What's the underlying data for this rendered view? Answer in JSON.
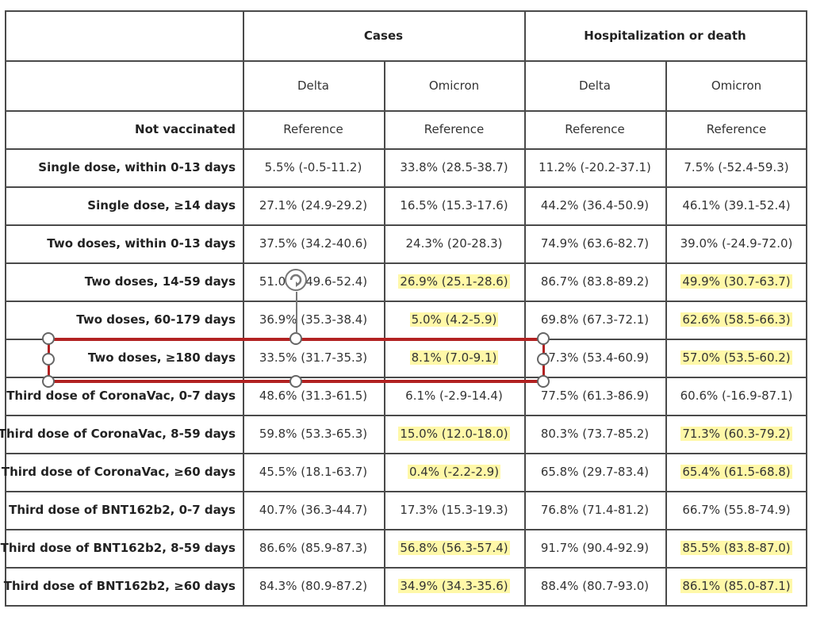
{
  "table": {
    "group_headers": [
      "Cases",
      "Hospitalization or death"
    ],
    "sub_headers": [
      "Delta",
      "Omicron",
      "Delta",
      "Omicron"
    ],
    "rows": [
      {
        "label": "Not vaccinated",
        "cells": [
          "Reference",
          "Reference",
          "Reference",
          "Reference"
        ],
        "hl": [
          false,
          false,
          false,
          false
        ]
      },
      {
        "label": "Single dose, within 0-13 days",
        "cells": [
          "5.5% (-0.5-11.2)",
          "33.8% (28.5-38.7)",
          "11.2% (-20.2-37.1)",
          "7.5% (-52.4-59.3)"
        ],
        "hl": [
          false,
          false,
          false,
          false
        ]
      },
      {
        "label": "Single dose, ≥14 days",
        "cells": [
          "27.1% (24.9-29.2)",
          "16.5% (15.3-17.6)",
          "44.2% (36.4-50.9)",
          "46.1% (39.1-52.4)"
        ],
        "hl": [
          false,
          false,
          false,
          false
        ]
      },
      {
        "label": "Two doses, within 0-13 days",
        "cells": [
          "37.5% (34.2-40.6)",
          "24.3% (20-28.3)",
          "74.9% (63.6-82.7)",
          "39.0% (-24.9-72.0)"
        ],
        "hl": [
          false,
          false,
          false,
          false
        ]
      },
      {
        "label": "Two doses, 14-59 days",
        "cells": [
          "51.0% (49.6-52.4)",
          "26.9% (25.1-28.6)",
          "86.7% (83.8-89.2)",
          "49.9% (30.7-63.7)"
        ],
        "hl": [
          false,
          true,
          false,
          true
        ]
      },
      {
        "label": "Two doses, 60-179 days",
        "cells": [
          "36.9% (35.3-38.4)",
          "5.0% (4.2-5.9)",
          "69.8% (67.3-72.1)",
          "62.6% (58.5-66.3)"
        ],
        "hl": [
          false,
          true,
          false,
          true
        ]
      },
      {
        "label": "Two doses, ≥180 days",
        "cells": [
          "33.5% (31.7-35.3)",
          "8.1% (7.0-9.1)",
          "57.3% (53.4-60.9)",
          "57.0% (53.5-60.2)"
        ],
        "hl": [
          false,
          true,
          false,
          true
        ]
      },
      {
        "label": "Third dose of CoronaVac, 0-7 days",
        "cells": [
          "48.6% (31.3-61.5)",
          "6.1% (-2.9-14.4)",
          "77.5% (61.3-86.9)",
          "60.6% (-16.9-87.1)"
        ],
        "hl": [
          false,
          false,
          false,
          false
        ]
      },
      {
        "label": "Third dose of CoronaVac, 8-59 days",
        "cells": [
          "59.8% (53.3-65.3)",
          "15.0% (12.0-18.0)",
          "80.3% (73.7-85.2)",
          "71.3% (60.3-79.2)"
        ],
        "hl": [
          false,
          true,
          false,
          true
        ]
      },
      {
        "label": "Third dose of CoronaVac, ≥60 days",
        "cells": [
          "45.5% (18.1-63.7)",
          "0.4% (-2.2-2.9)",
          "65.8% (29.7-83.4)",
          "65.4% (61.5-68.8)"
        ],
        "hl": [
          false,
          true,
          false,
          true
        ]
      },
      {
        "label": "Third dose of BNT162b2, 0-7 days",
        "cells": [
          "40.7% (36.3-44.7)",
          "17.3% (15.3-19.3)",
          "76.8% (71.4-81.2)",
          "66.7% (55.8-74.9)"
        ],
        "hl": [
          false,
          false,
          false,
          false
        ]
      },
      {
        "label": "Third dose of BNT162b2, 8-59 days",
        "cells": [
          "86.6% (85.9-87.3)",
          "56.8% (56.3-57.4)",
          "91.7% (90.4-92.9)",
          "85.5% (83.8-87.0)"
        ],
        "hl": [
          false,
          true,
          false,
          true
        ]
      },
      {
        "label": "Third dose of BNT162b2, ≥60 days",
        "cells": [
          "84.3% (80.9-87.2)",
          "34.9% (34.3-35.6)",
          "88.4% (80.7-93.0)",
          "86.1% (85.0-87.1)"
        ],
        "hl": [
          false,
          true,
          false,
          true
        ]
      }
    ]
  },
  "colors": {
    "highlight": "#fff8a8",
    "selection": "#b22222",
    "border": "#4a4a4a"
  }
}
